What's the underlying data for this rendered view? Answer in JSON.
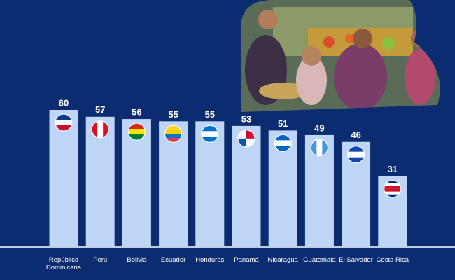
{
  "chart_data": {
    "type": "bar",
    "categories": [
      "República Dominicana",
      "Perú",
      "Bolivia",
      "Ecuador",
      "Honduras",
      "Panamá",
      "Nicaragua",
      "Guatemala",
      "El Salvador",
      "Costa Rica"
    ],
    "values": [
      60,
      57,
      56,
      55,
      55,
      53,
      51,
      49,
      46,
      31
    ],
    "color": "#bfd5f6"
  }
}
